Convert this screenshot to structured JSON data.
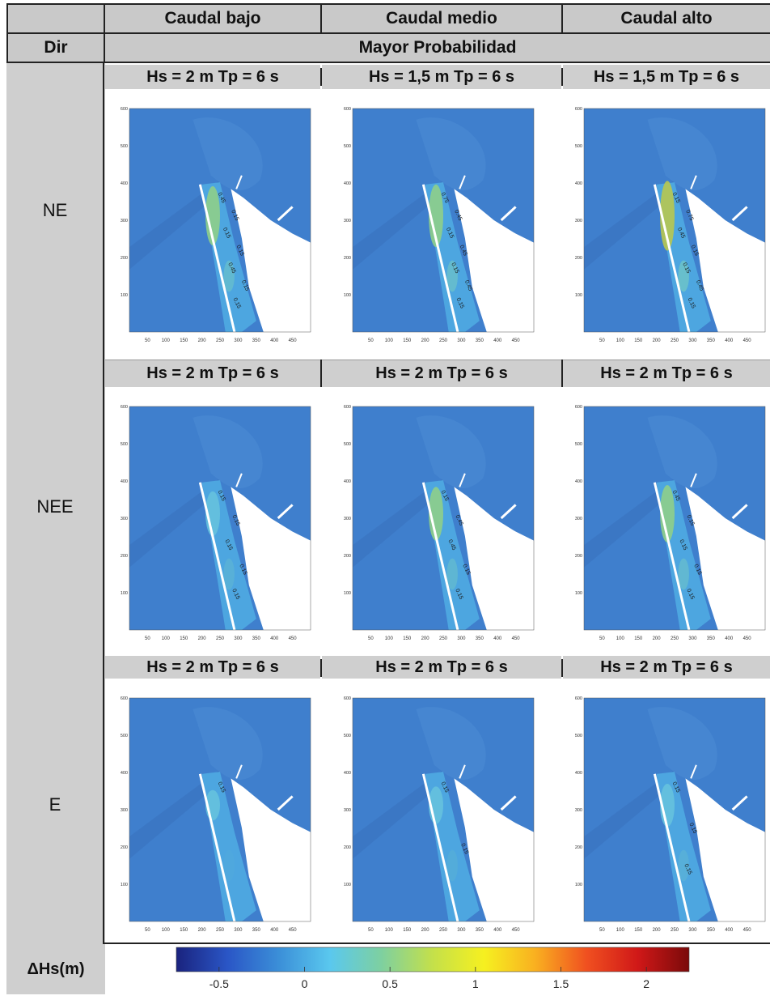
{
  "header": {
    "columns": [
      "Caudal bajo",
      "Caudal medio",
      "Caudal alto"
    ],
    "dir_label": "Dir",
    "probability_label": "Mayor Probabilidad"
  },
  "rows": [
    {
      "direction": "NE",
      "conditions": [
        "Hs = 2 m  Tp = 6 s",
        "Hs = 1,5 m  Tp = 6 s",
        "Hs = 1,5 m  Tp = 6 s"
      ],
      "panels": [
        {
          "contours": [
            "0.45",
            "0.15",
            "0.15",
            "0.15",
            "0.45",
            "0.15",
            "0.15"
          ]
        },
        {
          "contours": [
            "0.75",
            "0.45",
            "0.15",
            "0.45",
            "0.15",
            "0.45",
            "0.15"
          ]
        },
        {
          "contours": [
            "0.15",
            "0.75",
            "0.45",
            "0.15",
            "0.15",
            "0.45",
            "0.15"
          ]
        }
      ]
    },
    {
      "direction": "NEE",
      "conditions": [
        "Hs = 2 m  Tp = 6 s",
        "Hs = 2 m  Tp = 6 s",
        "Hs = 2 m  Tp = 6 s"
      ],
      "panels": [
        {
          "contours": [
            "0.15",
            "0.15",
            "0.15",
            "0.15",
            "0.15"
          ]
        },
        {
          "contours": [
            "0.15",
            "0.45",
            "0.45",
            "0.15",
            "0.15"
          ]
        },
        {
          "contours": [
            "0.45",
            "0.15",
            "0.15",
            "0.15",
            "0.15"
          ]
        }
      ]
    },
    {
      "direction": "E",
      "conditions": [
        "Hs = 2 m  Tp = 6 s",
        "Hs = 2 m  Tp = 6 s",
        "Hs = 2 m  Tp = 6 s"
      ],
      "panels": [
        {
          "contours": [
            "0.15"
          ]
        },
        {
          "contours": [
            "0.15",
            "0.15"
          ]
        },
        {
          "contours": [
            "0.15",
            "0.15",
            "0.15"
          ]
        }
      ]
    }
  ],
  "axes": {
    "x_ticks": [
      "50",
      "100",
      "150",
      "200",
      "250",
      "300",
      "350",
      "400",
      "450"
    ],
    "y_ticks": [
      "600",
      "500",
      "400",
      "300",
      "200",
      "100"
    ]
  },
  "colorbar": {
    "label": "ΔHs(m)",
    "ticks": [
      "-0.5",
      "0",
      "0.5",
      "1",
      "1.5",
      "2"
    ],
    "min": -0.75,
    "max": 2.25,
    "colors": [
      "#1a237e",
      "#2a56c6",
      "#3b8fd8",
      "#5ac8ee",
      "#7ed0a0",
      "#c4e04a",
      "#f6f020",
      "#f9b020",
      "#f05020",
      "#d01818",
      "#7a0a0a"
    ]
  }
}
